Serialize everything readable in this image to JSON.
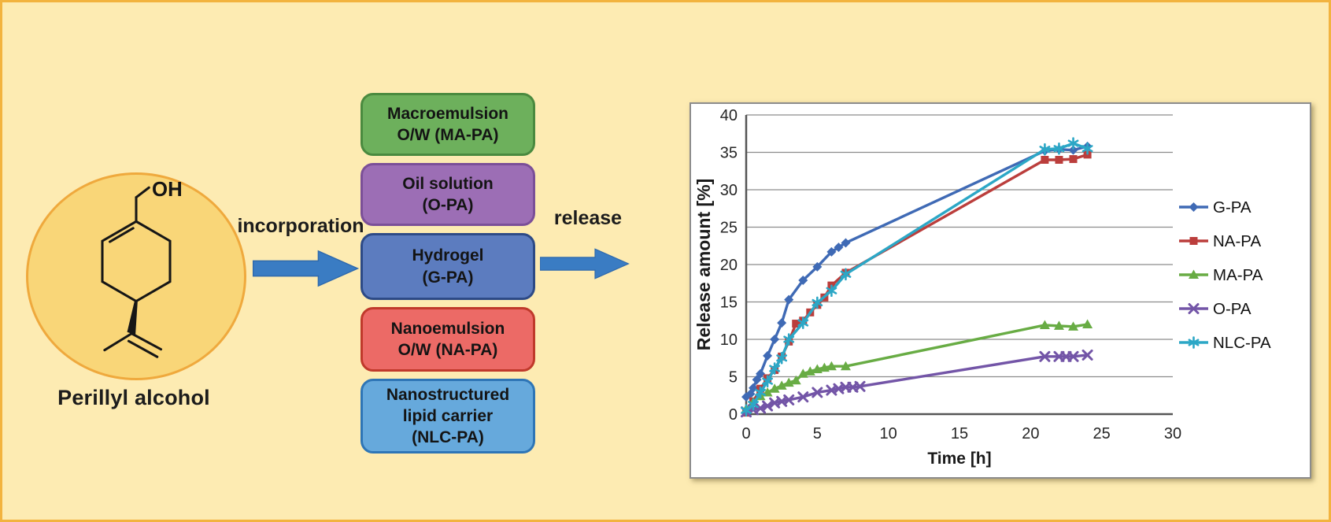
{
  "figure": {
    "molecule_label": "Perillyl alcohol",
    "molecule_oh_label": "OH",
    "arrow1_label": "incorporation",
    "arrow2_label": "release",
    "arrow_color": "#3A7CC3",
    "arrow_border": "#2E69AD",
    "background_color": "#FDEBB2",
    "border_color": "#F2B33F",
    "circle_fill": "#F9D678",
    "circle_border": "#EFA93D",
    "formulations": [
      {
        "lines": [
          "Macroemulsion",
          "O/W (MA-PA)"
        ],
        "fill": "#6DB05C",
        "border": "#4A8A3F"
      },
      {
        "lines": [
          "Oil solution",
          "(O-PA)"
        ],
        "fill": "#9C6EB5",
        "border": "#7B4F98"
      },
      {
        "lines": [
          "Hydrogel",
          "(G-PA)"
        ],
        "fill": "#5C7CBF",
        "border": "#2D4A86"
      },
      {
        "lines": [
          "Nanoemulsion",
          "O/W (NA-PA)"
        ],
        "fill": "#EC6A66",
        "border": "#C0392B"
      },
      {
        "lines": [
          "Nanostructured",
          "lipid carrier",
          "(NLC-PA)"
        ],
        "fill": "#66A9DC",
        "border": "#2E75B6"
      }
    ]
  },
  "chart_data": {
    "type": "line",
    "title": "",
    "xlabel": "Time [h]",
    "ylabel": "Release amount [%]",
    "xlim": [
      0,
      30
    ],
    "ylim": [
      0,
      40
    ],
    "xticks": [
      0,
      5,
      10,
      15,
      20,
      25,
      30
    ],
    "yticks": [
      0,
      5,
      10,
      15,
      20,
      25,
      30,
      35,
      40
    ],
    "grid": "horizontal",
    "legend_position": "right",
    "series": [
      {
        "name": "G-PA",
        "color": "#3F6AB5",
        "marker": "diamond",
        "points": [
          [
            0,
            2.3
          ],
          [
            0.3,
            2.7
          ],
          [
            0.5,
            3.5
          ],
          [
            0.75,
            4.6
          ],
          [
            1,
            5.4
          ],
          [
            1.5,
            7.8
          ],
          [
            2,
            10.0
          ],
          [
            2.5,
            12.2
          ],
          [
            3,
            15.3
          ],
          [
            4,
            17.9
          ],
          [
            5,
            19.7
          ],
          [
            6,
            21.7
          ],
          [
            6.5,
            22.3
          ],
          [
            7,
            22.9
          ],
          [
            21,
            35.2
          ],
          [
            22,
            35.4
          ],
          [
            23,
            35.3
          ],
          [
            24,
            35.8
          ]
        ]
      },
      {
        "name": "NA-PA",
        "color": "#BB3E3C",
        "marker": "square",
        "points": [
          [
            0,
            0.2
          ],
          [
            0.5,
            1.7
          ],
          [
            1,
            3.4
          ],
          [
            1.5,
            4.8
          ],
          [
            2,
            5.9
          ],
          [
            2.5,
            7.7
          ],
          [
            3,
            9.7
          ],
          [
            3.5,
            12.1
          ],
          [
            4,
            12.5
          ],
          [
            4.5,
            13.6
          ],
          [
            5,
            14.6
          ],
          [
            5.5,
            15.6
          ],
          [
            6,
            17.2
          ],
          [
            7,
            18.9
          ],
          [
            21,
            34.0
          ],
          [
            22,
            34.0
          ],
          [
            23,
            34.1
          ],
          [
            24,
            34.7
          ]
        ]
      },
      {
        "name": "MA-PA",
        "color": "#68AC44",
        "marker": "triangle",
        "points": [
          [
            0,
            0.7
          ],
          [
            0.5,
            1.6
          ],
          [
            1,
            2.4
          ],
          [
            1.5,
            2.9
          ],
          [
            2,
            3.4
          ],
          [
            2.5,
            3.8
          ],
          [
            3,
            4.2
          ],
          [
            3.5,
            4.5
          ],
          [
            4,
            5.4
          ],
          [
            4.5,
            5.7
          ],
          [
            5,
            6.0
          ],
          [
            5.5,
            6.2
          ],
          [
            6,
            6.4
          ],
          [
            7,
            6.4
          ],
          [
            21,
            11.9
          ],
          [
            22,
            11.8
          ],
          [
            23,
            11.7
          ],
          [
            24,
            12.0
          ]
        ]
      },
      {
        "name": "O-PA",
        "color": "#7355A7",
        "marker": "x",
        "points": [
          [
            0,
            0.3
          ],
          [
            0.5,
            0.6
          ],
          [
            1,
            0.8
          ],
          [
            1.5,
            1.1
          ],
          [
            2,
            1.5
          ],
          [
            2.5,
            1.7
          ],
          [
            3,
            1.9
          ],
          [
            4,
            2.3
          ],
          [
            5,
            2.9
          ],
          [
            6,
            3.2
          ],
          [
            6.5,
            3.4
          ],
          [
            7,
            3.6
          ],
          [
            7.5,
            3.6
          ],
          [
            8,
            3.7
          ],
          [
            21,
            7.7
          ],
          [
            22,
            7.7
          ],
          [
            22.5,
            7.7
          ],
          [
            23,
            7.7
          ],
          [
            24,
            7.9
          ]
        ]
      },
      {
        "name": "NLC-PA",
        "color": "#2CA7C6",
        "marker": "asterisk",
        "points": [
          [
            0,
            0.5
          ],
          [
            0.5,
            1.3
          ],
          [
            1,
            2.9
          ],
          [
            1.5,
            4.4
          ],
          [
            2,
            6.1
          ],
          [
            2.5,
            7.5
          ],
          [
            3,
            10.0
          ],
          [
            4,
            12.2
          ],
          [
            5,
            14.9
          ],
          [
            6,
            16.5
          ],
          [
            7,
            18.7
          ],
          [
            21,
            35.4
          ],
          [
            22,
            35.5
          ],
          [
            23,
            36.2
          ],
          [
            24,
            35.5
          ]
        ]
      }
    ]
  }
}
